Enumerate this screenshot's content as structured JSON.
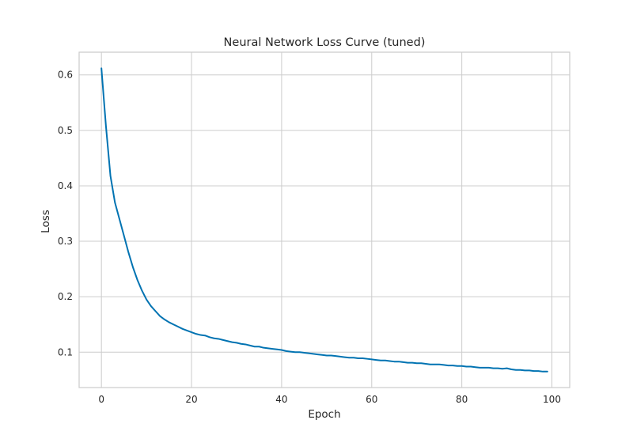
{
  "chart_data": {
    "type": "line",
    "title": "Neural Network Loss Curve (tuned)",
    "xlabel": "Epoch",
    "ylabel": "Loss",
    "xlim": [
      -4.95,
      103.95
    ],
    "ylim": [
      0.0362,
      0.641
    ],
    "xticks": [
      0,
      20,
      40,
      60,
      80,
      100
    ],
    "yticks": [
      0.1,
      0.2,
      0.3,
      0.4,
      0.5,
      0.6
    ],
    "xtick_labels": [
      "0",
      "20",
      "40",
      "60",
      "80",
      "100"
    ],
    "ytick_labels": [
      "0.1",
      "0.2",
      "0.3",
      "0.4",
      "0.5",
      "0.6"
    ],
    "grid": true,
    "line_color": "#0173b2",
    "grid_color": "#cccccc",
    "series": [
      {
        "x": [
          0,
          1,
          2,
          3,
          4,
          5,
          6,
          7,
          8,
          9,
          10,
          11,
          12,
          13,
          14,
          15,
          16,
          17,
          18,
          19,
          20,
          21,
          22,
          23,
          24,
          25,
          26,
          27,
          28,
          29,
          30,
          31,
          32,
          33,
          34,
          35,
          36,
          37,
          38,
          39,
          40,
          41,
          42,
          43,
          44,
          45,
          46,
          47,
          48,
          49,
          50,
          51,
          52,
          53,
          54,
          55,
          56,
          57,
          58,
          59,
          60,
          61,
          62,
          63,
          64,
          65,
          66,
          67,
          68,
          69,
          70,
          71,
          72,
          73,
          74,
          75,
          76,
          77,
          78,
          79,
          80,
          81,
          82,
          83,
          84,
          85,
          86,
          87,
          88,
          89,
          90,
          91,
          92,
          93,
          94,
          95,
          96,
          97,
          98,
          99
        ],
        "y": [
          0.612,
          0.508,
          0.418,
          0.37,
          0.34,
          0.31,
          0.28,
          0.253,
          0.23,
          0.211,
          0.195,
          0.183,
          0.174,
          0.165,
          0.159,
          0.154,
          0.15,
          0.146,
          0.142,
          0.139,
          0.136,
          0.133,
          0.131,
          0.13,
          0.127,
          0.125,
          0.124,
          0.122,
          0.12,
          0.118,
          0.117,
          0.115,
          0.114,
          0.112,
          0.11,
          0.11,
          0.108,
          0.107,
          0.106,
          0.105,
          0.104,
          0.102,
          0.101,
          0.1,
          0.1,
          0.099,
          0.098,
          0.097,
          0.096,
          0.095,
          0.094,
          0.094,
          0.093,
          0.092,
          0.091,
          0.09,
          0.09,
          0.089,
          0.089,
          0.088,
          0.087,
          0.086,
          0.085,
          0.085,
          0.084,
          0.083,
          0.083,
          0.082,
          0.081,
          0.081,
          0.08,
          0.08,
          0.079,
          0.078,
          0.078,
          0.078,
          0.077,
          0.076,
          0.076,
          0.075,
          0.075,
          0.074,
          0.074,
          0.073,
          0.072,
          0.072,
          0.072,
          0.071,
          0.071,
          0.07,
          0.071,
          0.069,
          0.068,
          0.068,
          0.067,
          0.067,
          0.066,
          0.066,
          0.065,
          0.065
        ]
      }
    ]
  }
}
